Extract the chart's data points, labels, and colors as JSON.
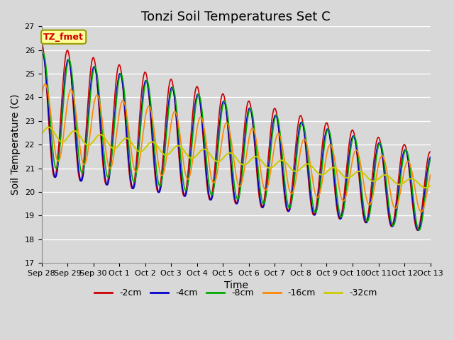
{
  "title": "Tonzi Soil Temperatures Set C",
  "xlabel": "Time",
  "ylabel": "Soil Temperature (C)",
  "annotation": "TZ_fmet",
  "ylim": [
    17.0,
    27.0
  ],
  "yticks": [
    17.0,
    18.0,
    19.0,
    20.0,
    21.0,
    22.0,
    23.0,
    24.0,
    25.0,
    26.0,
    27.0
  ],
  "xtick_labels": [
    "Sep 28",
    "Sep 29",
    "Sep 30",
    "Oct 1",
    "Oct 2",
    "Oct 3",
    "Oct 4",
    "Oct 5",
    "Oct 6",
    "Oct 7",
    "Oct 8",
    "Oct 9",
    "Oct 10",
    "Oct 11",
    "Oct 12",
    "Oct 13"
  ],
  "colors": {
    "-2cm": "#cc0000",
    "-4cm": "#0000cc",
    "-8cm": "#00aa00",
    "-16cm": "#ff8800",
    "-32cm": "#cccc00"
  },
  "legend_order": [
    "-2cm",
    "-4cm",
    "-8cm",
    "-16cm",
    "-32cm"
  ],
  "background_color": "#d8d8d8",
  "plot_bg_color": "#d8d8d8",
  "annotation_bg": "#ffff99",
  "annotation_color": "#cc0000",
  "title_fontsize": 13,
  "axis_label_fontsize": 10,
  "tick_fontsize": 8,
  "linewidth": 1.2
}
